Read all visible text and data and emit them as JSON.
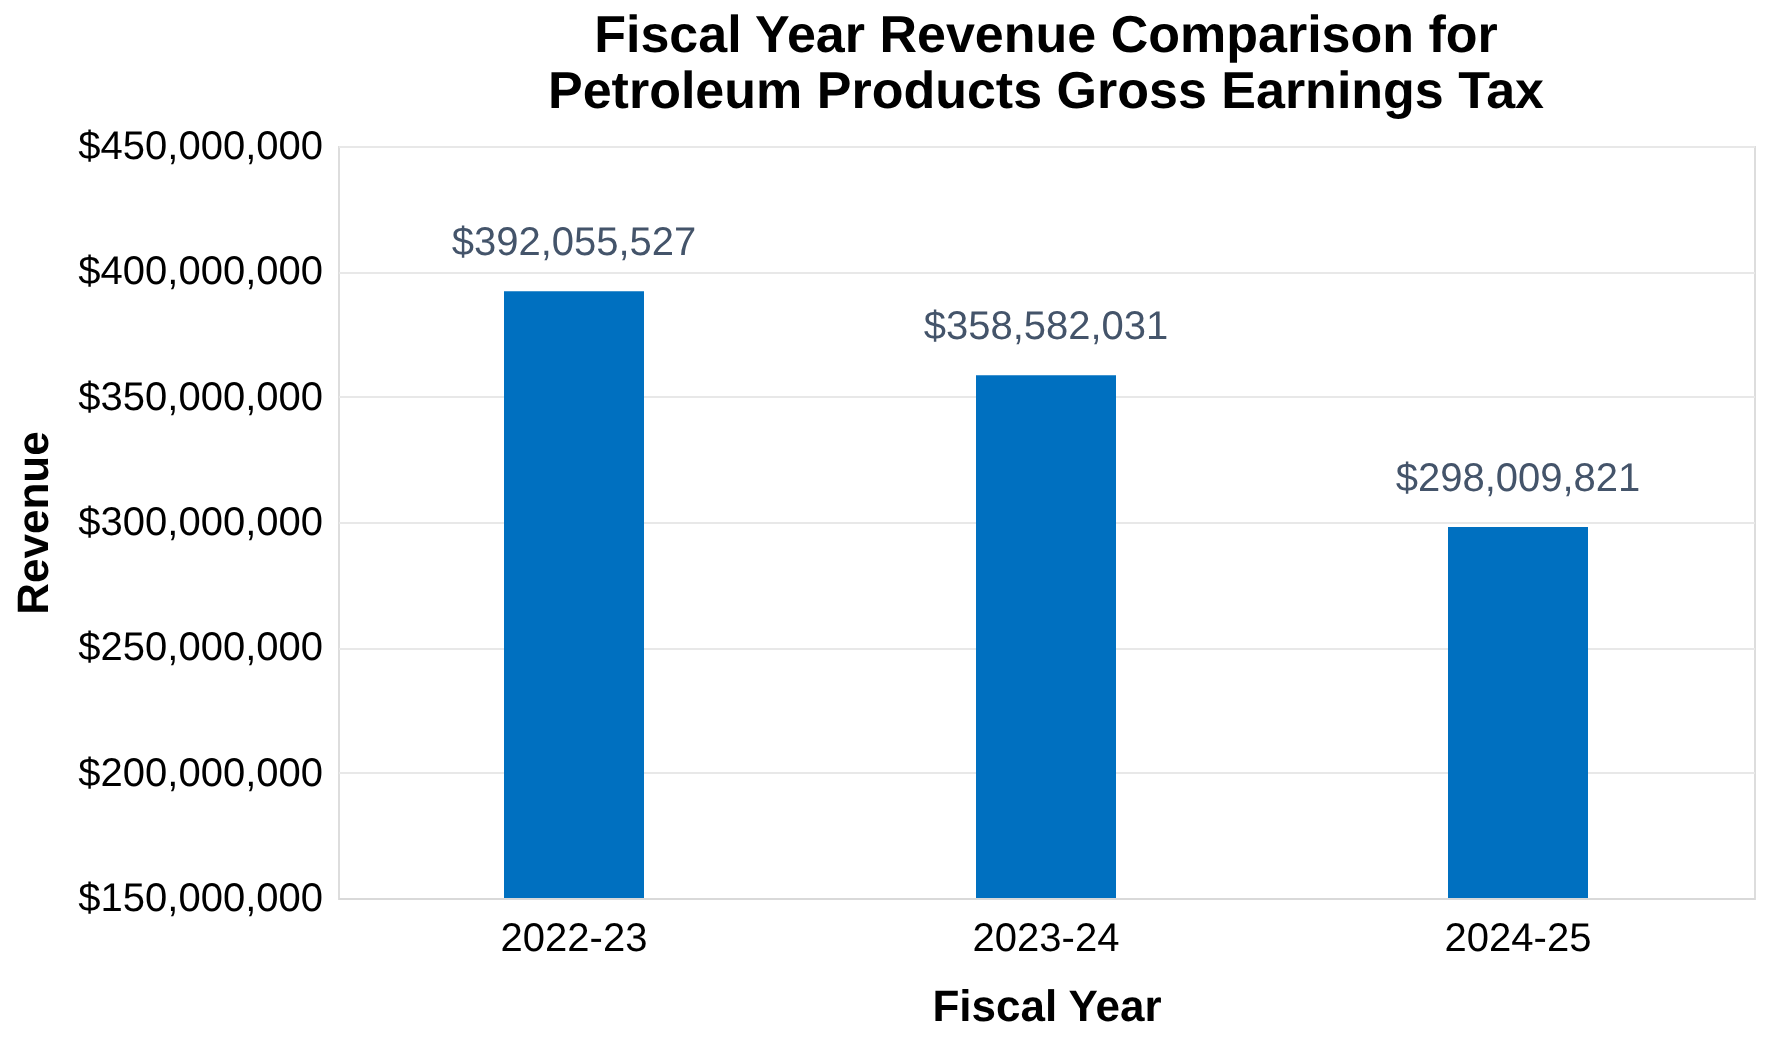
{
  "chart_data": {
    "type": "bar",
    "title": [
      "Fiscal Year Revenue Comparison for",
      "Petroleum Products Gross Earnings Tax"
    ],
    "xlabel": "Fiscal Year",
    "ylabel": "Revenue",
    "categories": [
      "2022-23",
      "2023-24",
      "2024-25"
    ],
    "values": [
      392055527,
      358582031,
      298009821
    ],
    "value_labels": [
      "$392,055,527",
      "$358,582,031",
      "$298,009,821"
    ],
    "color": "#0070c0",
    "ylim": [
      150000000,
      450000000
    ],
    "yticks": [
      {
        "value": 150000000,
        "label": "$150,000,000"
      },
      {
        "value": 200000000,
        "label": "$200,000,000"
      },
      {
        "value": 250000000,
        "label": "$250,000,000"
      },
      {
        "value": 300000000,
        "label": "$300,000,000"
      },
      {
        "value": 350000000,
        "label": "$350,000,000"
      },
      {
        "value": 400000000,
        "label": "$400,000,000"
      },
      {
        "value": 450000000,
        "label": "$450,000,000"
      }
    ],
    "grid": "y"
  }
}
